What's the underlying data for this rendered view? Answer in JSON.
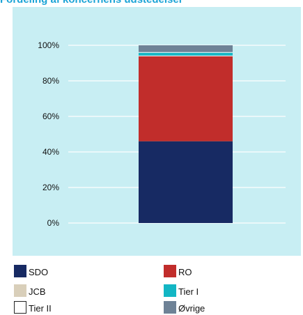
{
  "title": "Fordeling af koncernens udstedelser",
  "chart_data": {
    "type": "bar",
    "stacked": true,
    "categories": [
      ""
    ],
    "ylim": [
      0,
      100
    ],
    "yticks": [
      "0%",
      "20%",
      "40%",
      "60%",
      "80%",
      "100%"
    ],
    "ytick_values": [
      0,
      20,
      40,
      60,
      80,
      100
    ],
    "grid": true,
    "legend_position": "bottom",
    "series": [
      {
        "name": "SDO",
        "values": [
          46
        ],
        "color": "#172a63"
      },
      {
        "name": "JCB",
        "values": [
          0
        ],
        "color": "#d9cfba"
      },
      {
        "name": "Tier II",
        "values": [
          0
        ],
        "color": "#ffffff"
      },
      {
        "name": "RO",
        "values": [
          48
        ],
        "color": "#c12d2b"
      },
      {
        "name": "Tier I",
        "values": [
          2
        ],
        "color": "#13b6c4"
      },
      {
        "name": "Øvrige",
        "values": [
          4
        ],
        "color": "#6e8296"
      }
    ]
  },
  "legend": [
    {
      "label": "SDO",
      "color": "#172a63"
    },
    {
      "label": "RO",
      "color": "#c12d2b"
    },
    {
      "label": "JCB",
      "color": "#d9cfba"
    },
    {
      "label": "Tier I",
      "color": "#13b6c4"
    },
    {
      "label": "Tier II",
      "color": "#ffffff"
    },
    {
      "label": "Øvrige",
      "color": "#6e8296"
    }
  ]
}
